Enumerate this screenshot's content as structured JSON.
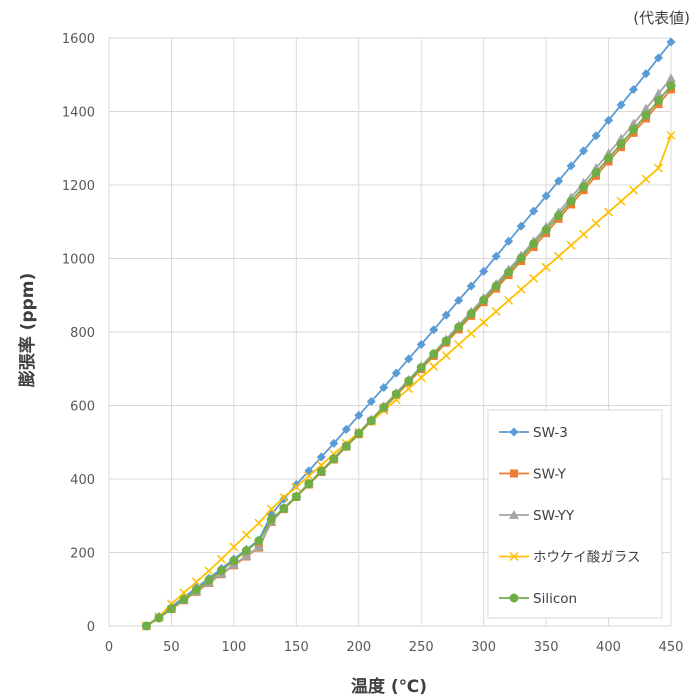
{
  "chart_data": {
    "type": "line",
    "note": "(代表値)",
    "xlabel": "温度 (℃)",
    "ylabel": "膨張率 (ppm)",
    "xlim": [
      0,
      450
    ],
    "ylim": [
      0,
      1600
    ],
    "xticks": [
      0,
      50,
      100,
      150,
      200,
      250,
      300,
      350,
      400,
      450
    ],
    "yticks": [
      0,
      200,
      400,
      600,
      800,
      1000,
      1200,
      1400,
      1600
    ],
    "grid": true,
    "legend_position": "bottom-right",
    "x": [
      30,
      40,
      50,
      60,
      70,
      80,
      90,
      100,
      110,
      120,
      130,
      140,
      150,
      160,
      170,
      180,
      190,
      200,
      210,
      220,
      230,
      240,
      250,
      260,
      270,
      280,
      290,
      300,
      310,
      320,
      330,
      340,
      350,
      360,
      370,
      380,
      390,
      400,
      410,
      420,
      430,
      440,
      450
    ],
    "series": [
      {
        "name": "SW-3",
        "color": "#5B9BD5",
        "marker": "diamond",
        "values": [
          0,
          26,
          52,
          78,
          104,
          130,
          156,
          182,
          208,
          234,
          303,
          345,
          385,
          422,
          460,
          497,
          535,
          573,
          611,
          649,
          688,
          727,
          766,
          806,
          846,
          886,
          925,
          965,
          1006,
          1047,
          1088,
          1129,
          1170,
          1211,
          1252,
          1293,
          1334,
          1376,
          1418,
          1460,
          1503,
          1546,
          1589
        ]
      },
      {
        "name": "SW-Y",
        "color": "#ED7D31",
        "marker": "square",
        "values": [
          0,
          23,
          46,
          70,
          93,
          117,
          141,
          165,
          189,
          213,
          283,
          318,
          351,
          385,
          419,
          453,
          488,
          522,
          557,
          592,
          628,
          663,
          699,
          735,
          771,
          807,
          844,
          881,
          918,
          955,
          993,
          1031,
          1069,
          1108,
          1147,
          1186,
          1225,
          1264,
          1303,
          1342,
          1381,
          1420,
          1460
        ]
      },
      {
        "name": "SW-YY",
        "color": "#A5A5A5",
        "marker": "triangle",
        "values": [
          0,
          23,
          47,
          71,
          95,
          119,
          143,
          167,
          191,
          215,
          285,
          320,
          354,
          388,
          422,
          457,
          492,
          527,
          562,
          598,
          634,
          670,
          707,
          743,
          780,
          818,
          855,
          893,
          931,
          970,
          1008,
          1047,
          1086,
          1126,
          1166,
          1206,
          1246,
          1286,
          1326,
          1367,
          1408,
          1449,
          1490
        ]
      },
      {
        "name": "ホウケイ酸ガラス",
        "color": "#FFC000",
        "marker": "x",
        "values": [
          0,
          25,
          60,
          90,
          120,
          150,
          182,
          215,
          248,
          280,
          318,
          350,
          378,
          408,
          438,
          468,
          497,
          527,
          556,
          586,
          616,
          646,
          676,
          706,
          736,
          766,
          796,
          826,
          856,
          886,
          916,
          946,
          976,
          1006,
          1036,
          1066,
          1096,
          1126,
          1156,
          1186,
          1216,
          1246,
          1335
        ]
      },
      {
        "name": "Silicon",
        "color": "#70AD47",
        "marker": "circle",
        "values": [
          0,
          22,
          47,
          72,
          98,
          124,
          151,
          178,
          205,
          232,
          290,
          320,
          352,
          387,
          421,
          455,
          489,
          524,
          559,
          595,
          631,
          667,
          703,
          740,
          776,
          813,
          850,
          887,
          925,
          963,
          1001,
          1040,
          1078,
          1117,
          1156,
          1195,
          1234,
          1273,
          1312,
          1351,
          1390,
          1430,
          1470
        ]
      }
    ]
  }
}
